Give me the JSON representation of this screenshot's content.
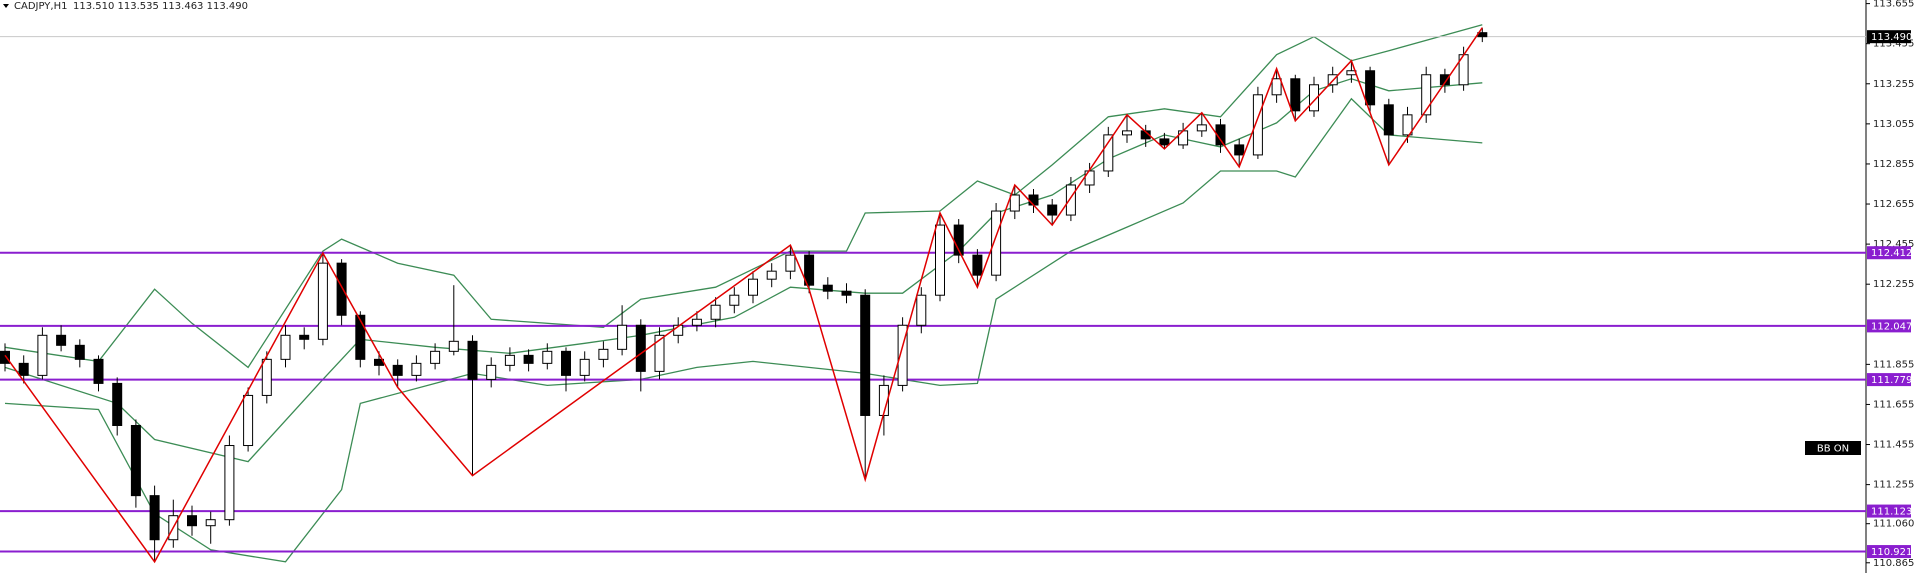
{
  "chart_data": {
    "type": "candlestick",
    "header": {
      "symbol": "CADJPY,H1",
      "ohlc": "113.510 113.535 113.463 113.490"
    },
    "indicator_label": "BB ON",
    "ylim": [
      110.814,
      113.673
    ],
    "yticks": [
      113.655,
      113.455,
      113.255,
      113.055,
      112.855,
      112.655,
      112.455,
      112.255,
      111.855,
      111.655,
      111.455,
      111.255,
      {
        "value": 111.06,
        "label": "111.060"
      },
      110.865
    ],
    "current_price": {
      "value": 113.49,
      "label": "113.490"
    },
    "levels": [
      112.412,
      112.047,
      111.779,
      111.123,
      110.921
    ],
    "colors": {
      "bull": "#ffffff",
      "bear": "#000000",
      "wick": "#000000",
      "band": "#3c8c55",
      "zigzag": "#e00000",
      "level": "#8a1ecf",
      "current": "#000000"
    },
    "candles": [
      [
        111.92,
        111.96,
        111.82,
        111.86
      ],
      [
        111.86,
        111.9,
        111.76,
        111.8
      ],
      [
        111.8,
        112.04,
        111.78,
        112.0
      ],
      [
        112.0,
        112.05,
        111.92,
        111.95
      ],
      [
        111.95,
        111.98,
        111.84,
        111.88
      ],
      [
        111.88,
        111.9,
        111.72,
        111.76
      ],
      [
        111.76,
        111.79,
        111.5,
        111.55
      ],
      [
        111.55,
        111.58,
        111.14,
        111.2
      ],
      [
        111.2,
        111.25,
        110.87,
        110.98
      ],
      [
        110.98,
        111.18,
        110.94,
        111.1
      ],
      [
        111.1,
        111.15,
        111.0,
        111.05
      ],
      [
        111.05,
        111.12,
        110.96,
        111.08
      ],
      [
        111.08,
        111.5,
        111.05,
        111.45
      ],
      [
        111.45,
        111.74,
        111.42,
        111.7
      ],
      [
        111.7,
        111.92,
        111.66,
        111.88
      ],
      [
        111.88,
        112.05,
        111.84,
        112.0
      ],
      [
        112.0,
        112.04,
        111.93,
        111.98
      ],
      [
        111.98,
        112.41,
        111.95,
        112.36
      ],
      [
        112.36,
        112.38,
        112.05,
        112.1
      ],
      [
        112.1,
        112.12,
        111.84,
        111.88
      ],
      [
        111.88,
        111.92,
        111.8,
        111.85
      ],
      [
        111.85,
        111.88,
        111.74,
        111.8
      ],
      [
        111.8,
        111.9,
        111.77,
        111.86
      ],
      [
        111.86,
        111.96,
        111.83,
        111.92
      ],
      [
        111.92,
        112.25,
        111.9,
        111.97
      ],
      [
        111.97,
        112.0,
        111.3,
        111.78
      ],
      [
        111.78,
        111.89,
        111.74,
        111.85
      ],
      [
        111.85,
        111.94,
        111.82,
        111.9
      ],
      [
        111.9,
        111.93,
        111.82,
        111.86
      ],
      [
        111.86,
        111.96,
        111.83,
        111.92
      ],
      [
        111.92,
        111.94,
        111.72,
        111.8
      ],
      [
        111.8,
        111.92,
        111.77,
        111.88
      ],
      [
        111.88,
        111.97,
        111.84,
        111.93
      ],
      [
        111.93,
        112.15,
        111.9,
        112.05
      ],
      [
        112.05,
        112.08,
        111.72,
        111.82
      ],
      [
        111.82,
        112.04,
        111.78,
        112.0
      ],
      [
        112.0,
        112.09,
        111.96,
        112.05
      ],
      [
        112.05,
        112.12,
        112.02,
        112.08
      ],
      [
        112.08,
        112.19,
        112.04,
        112.15
      ],
      [
        112.15,
        112.24,
        112.11,
        112.2
      ],
      [
        112.2,
        112.32,
        112.16,
        112.28
      ],
      [
        112.28,
        112.36,
        112.24,
        112.32
      ],
      [
        112.32,
        112.45,
        112.28,
        112.4
      ],
      [
        112.4,
        112.42,
        112.21,
        112.25
      ],
      [
        112.25,
        112.29,
        112.18,
        112.22
      ],
      [
        112.22,
        112.26,
        112.16,
        112.2
      ],
      [
        112.2,
        112.23,
        111.28,
        111.6
      ],
      [
        111.6,
        111.8,
        111.5,
        111.75
      ],
      [
        111.75,
        112.09,
        111.72,
        112.05
      ],
      [
        112.05,
        112.24,
        112.01,
        112.2
      ],
      [
        112.2,
        112.61,
        112.17,
        112.55
      ],
      [
        112.55,
        112.58,
        112.36,
        112.4
      ],
      [
        112.4,
        112.43,
        112.24,
        112.3
      ],
      [
        112.3,
        112.66,
        112.27,
        112.62
      ],
      [
        112.62,
        112.75,
        112.58,
        112.7
      ],
      [
        112.7,
        112.73,
        112.61,
        112.65
      ],
      [
        112.65,
        112.68,
        112.55,
        112.6
      ],
      [
        112.6,
        112.79,
        112.57,
        112.75
      ],
      [
        112.75,
        112.86,
        112.71,
        112.82
      ],
      [
        112.82,
        113.04,
        112.79,
        113.0
      ],
      [
        113.0,
        113.1,
        112.96,
        113.02
      ],
      [
        113.02,
        113.05,
        112.94,
        112.98
      ],
      [
        112.98,
        113.01,
        112.93,
        112.95
      ],
      [
        112.95,
        113.06,
        112.93,
        113.02
      ],
      [
        113.02,
        113.11,
        112.99,
        113.05
      ],
      [
        113.05,
        113.08,
        112.91,
        112.95
      ],
      [
        112.95,
        112.98,
        112.84,
        112.9
      ],
      [
        112.9,
        113.24,
        112.88,
        113.2
      ],
      [
        113.2,
        113.33,
        113.16,
        113.28
      ],
      [
        113.28,
        113.3,
        113.07,
        113.12
      ],
      [
        113.12,
        113.29,
        113.09,
        113.25
      ],
      [
        113.25,
        113.34,
        113.21,
        113.3
      ],
      [
        113.3,
        113.37,
        113.26,
        113.32
      ],
      [
        113.32,
        113.34,
        113.11,
        113.15
      ],
      [
        113.15,
        113.18,
        112.85,
        113.0
      ],
      [
        113.0,
        113.14,
        112.96,
        113.1
      ],
      [
        113.1,
        113.34,
        113.06,
        113.3
      ],
      [
        113.3,
        113.33,
        113.21,
        113.25
      ],
      [
        113.25,
        113.44,
        113.22,
        113.4
      ],
      [
        113.51,
        113.535,
        113.463,
        113.49
      ]
    ],
    "bands": [
      {
        "x": [
          0,
          5,
          8,
          10,
          13,
          17,
          18,
          21,
          24,
          26,
          32,
          34,
          38,
          42,
          45,
          46,
          50,
          52,
          54,
          56,
          59,
          62,
          65,
          68,
          70,
          72,
          74,
          79
        ],
        "values": [
          111.94,
          111.87,
          112.23,
          112.06,
          111.84,
          112.42,
          112.48,
          112.36,
          112.3,
          112.08,
          112.04,
          112.18,
          112.24,
          112.42,
          112.42,
          112.61,
          112.62,
          112.77,
          112.7,
          112.85,
          113.09,
          113.13,
          113.09,
          113.4,
          113.49,
          113.37,
          113.42,
          113.55
        ]
      },
      {
        "x": [
          0,
          6,
          8,
          13,
          17,
          19,
          23,
          27,
          31,
          34,
          39,
          42,
          46,
          48,
          51,
          53,
          56,
          59,
          62,
          65,
          68,
          70,
          72,
          74,
          79
        ],
        "values": [
          111.84,
          111.66,
          111.48,
          111.37,
          111.78,
          111.98,
          111.94,
          111.91,
          111.96,
          112.0,
          112.09,
          112.24,
          112.21,
          112.21,
          112.42,
          112.61,
          112.7,
          112.88,
          113.0,
          112.94,
          113.06,
          113.22,
          113.28,
          113.22,
          113.26
        ]
      },
      {
        "x": [
          0,
          5,
          8,
          11,
          15,
          18,
          19,
          25,
          29,
          34,
          37,
          40,
          46,
          50,
          52,
          53,
          57,
          60,
          63,
          65,
          68,
          69,
          72,
          74,
          79
        ],
        "values": [
          111.66,
          111.63,
          111.11,
          110.93,
          110.87,
          111.23,
          111.66,
          111.81,
          111.75,
          111.78,
          111.84,
          111.87,
          111.81,
          111.75,
          111.76,
          112.18,
          112.42,
          112.54,
          112.66,
          112.82,
          112.82,
          112.79,
          113.18,
          113.0,
          112.96
        ]
      }
    ],
    "zigzag": {
      "x": [
        0,
        8,
        17,
        21,
        25,
        42,
        43,
        46,
        50,
        52,
        54,
        56,
        60,
        62,
        64,
        66,
        68,
        69,
        72,
        74,
        79
      ],
      "values": [
        111.9,
        110.87,
        112.41,
        111.74,
        111.3,
        112.45,
        112.23,
        111.28,
        112.61,
        112.24,
        112.75,
        112.55,
        113.1,
        112.93,
        113.11,
        112.84,
        113.33,
        113.07,
        113.37,
        112.85,
        113.535
      ]
    }
  }
}
